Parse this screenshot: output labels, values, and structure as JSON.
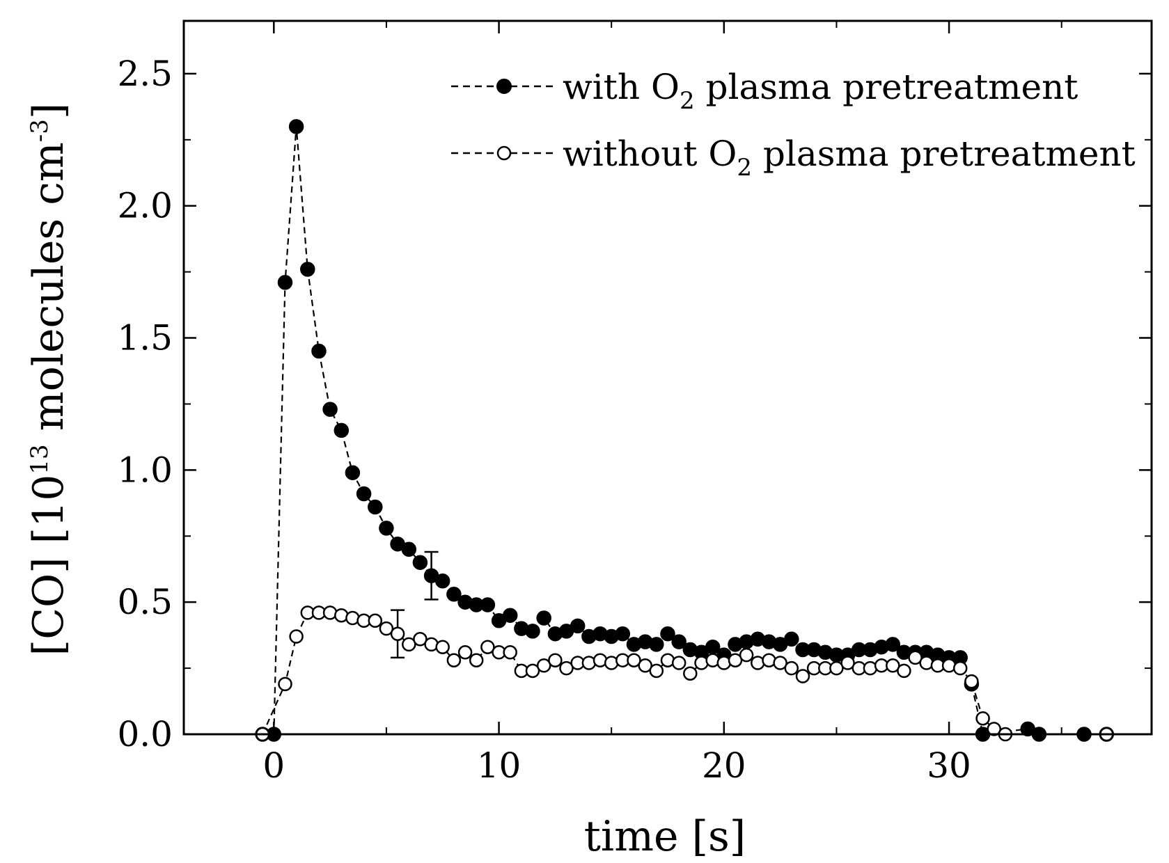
{
  "chart_data": {
    "type": "scatter",
    "title": "",
    "xlabel": "time [s]",
    "ylabel": {
      "prefix": "[CO] [10",
      "exp": "13",
      "middle": " molecules cm",
      "exp2": "-3",
      "suffix": "]"
    },
    "xlim": [
      -4,
      39
    ],
    "ylim": [
      0,
      2.7
    ],
    "xticks": [
      0,
      10,
      20,
      30
    ],
    "xtick_labels": [
      "0",
      "10",
      "20",
      "30"
    ],
    "yticks": [
      0.0,
      0.5,
      1.0,
      1.5,
      2.0,
      2.5
    ],
    "ytick_labels": [
      "0.0",
      "0.5",
      "1.0",
      "1.5",
      "2.0",
      "2.5"
    ],
    "legend_position": "top-right",
    "series": [
      {
        "name": "with O2 plasma pretreatment",
        "legend": {
          "pre": "with O",
          "sub": "2",
          "post": " plasma pretreatment"
        },
        "marker": "filled-circle",
        "line": "dashed",
        "x": [
          -0.5,
          0,
          0.5,
          1.0,
          1.5,
          2.0,
          2.5,
          3.0,
          3.5,
          4.0,
          4.5,
          5.0,
          5.5,
          6.0,
          6.5,
          7.0,
          7.5,
          8.0,
          8.5,
          9.0,
          9.5,
          10.0,
          10.5,
          11.0,
          11.5,
          12.0,
          12.5,
          13.0,
          13.5,
          14.0,
          14.5,
          15.0,
          15.5,
          16.0,
          16.5,
          17.0,
          17.5,
          18.0,
          18.5,
          19.0,
          19.5,
          20.0,
          20.5,
          21.0,
          21.5,
          22.0,
          22.5,
          23.0,
          23.5,
          24.0,
          24.5,
          25.0,
          25.5,
          26.0,
          26.5,
          27.0,
          27.5,
          28.0,
          28.5,
          29.0,
          29.5,
          30.0,
          30.5,
          31.0,
          31.5,
          33.5,
          34.0,
          36.0,
          37.0
        ],
        "y": [
          0.0,
          0.0,
          1.71,
          2.3,
          1.76,
          1.45,
          1.23,
          1.15,
          0.99,
          0.91,
          0.86,
          0.78,
          0.72,
          0.7,
          0.65,
          0.6,
          0.58,
          0.53,
          0.5,
          0.49,
          0.49,
          0.43,
          0.45,
          0.4,
          0.39,
          0.44,
          0.38,
          0.39,
          0.41,
          0.37,
          0.38,
          0.37,
          0.38,
          0.34,
          0.35,
          0.34,
          0.38,
          0.35,
          0.32,
          0.31,
          0.33,
          0.3,
          0.34,
          0.35,
          0.36,
          0.35,
          0.34,
          0.36,
          0.32,
          0.32,
          0.31,
          0.3,
          0.3,
          0.32,
          0.32,
          0.33,
          0.34,
          0.31,
          0.31,
          0.31,
          0.3,
          0.29,
          0.29,
          0.19,
          0.0,
          0.02,
          0.0,
          0.0,
          0.0
        ],
        "error_bar": {
          "x": 7.0,
          "y": 0.6,
          "err": 0.09
        }
      },
      {
        "name": "without O2 plasma pretreatment",
        "legend": {
          "pre": "without O",
          "sub": "2",
          "post": " plasma pretreatment"
        },
        "marker": "open-circle",
        "line": "dashed",
        "x": [
          -0.5,
          0.5,
          1.0,
          1.5,
          2.0,
          2.5,
          3.0,
          3.5,
          4.0,
          4.5,
          5.0,
          5.5,
          6.0,
          6.5,
          7.0,
          7.5,
          8.0,
          8.5,
          9.0,
          9.5,
          10.0,
          10.5,
          11.0,
          11.5,
          12.0,
          12.5,
          13.0,
          13.5,
          14.0,
          14.5,
          15.0,
          15.5,
          16.0,
          16.5,
          17.0,
          17.5,
          18.0,
          18.5,
          19.0,
          19.5,
          20.0,
          20.5,
          21.0,
          21.5,
          22.0,
          22.5,
          23.0,
          23.5,
          24.0,
          24.5,
          25.0,
          25.5,
          26.0,
          26.5,
          27.0,
          27.5,
          28.0,
          28.5,
          29.0,
          29.5,
          30.0,
          30.5,
          31.0,
          31.5,
          32.0,
          32.5,
          37.0
        ],
        "y": [
          0.0,
          0.19,
          0.37,
          0.46,
          0.46,
          0.46,
          0.45,
          0.44,
          0.43,
          0.43,
          0.4,
          0.38,
          0.34,
          0.36,
          0.34,
          0.33,
          0.28,
          0.31,
          0.28,
          0.33,
          0.31,
          0.31,
          0.24,
          0.24,
          0.26,
          0.28,
          0.25,
          0.27,
          0.27,
          0.28,
          0.27,
          0.28,
          0.28,
          0.26,
          0.24,
          0.28,
          0.27,
          0.23,
          0.27,
          0.28,
          0.27,
          0.28,
          0.3,
          0.27,
          0.28,
          0.27,
          0.25,
          0.22,
          0.25,
          0.25,
          0.25,
          0.27,
          0.25,
          0.25,
          0.26,
          0.26,
          0.24,
          0.29,
          0.27,
          0.26,
          0.26,
          0.25,
          0.2,
          0.06,
          0.02,
          0.0,
          0.0
        ],
        "error_bar": {
          "x": 5.5,
          "y": 0.38,
          "err": 0.09
        }
      }
    ]
  }
}
